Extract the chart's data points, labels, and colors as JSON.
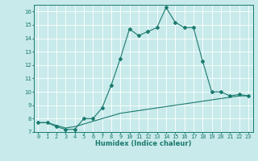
{
  "xlabel": "Humidex (Indice chaleur)",
  "ylabel": "",
  "background_color": "#c8eaea",
  "grid_color": "#ffffff",
  "line_color": "#1a7a6e",
  "xlim": [
    -0.5,
    23.5
  ],
  "ylim": [
    7,
    16.5
  ],
  "yticks": [
    7,
    8,
    9,
    10,
    11,
    12,
    13,
    14,
    15,
    16
  ],
  "xticks": [
    0,
    1,
    2,
    3,
    4,
    5,
    6,
    7,
    8,
    9,
    10,
    11,
    12,
    13,
    14,
    15,
    16,
    17,
    18,
    19,
    20,
    21,
    22,
    23
  ],
  "curve1_x": [
    0,
    1,
    2,
    3,
    4,
    5,
    6,
    7,
    8,
    9,
    10,
    11,
    12,
    13,
    14,
    15,
    16,
    17,
    18,
    19,
    20,
    21,
    22,
    23
  ],
  "curve1_y": [
    7.7,
    7.7,
    7.4,
    7.2,
    7.2,
    8.0,
    8.0,
    8.8,
    10.5,
    12.5,
    14.7,
    14.2,
    14.5,
    14.8,
    16.3,
    15.2,
    14.8,
    14.8,
    12.3,
    10.0,
    10.0,
    9.7,
    9.8,
    9.7
  ],
  "curve2_x": [
    0,
    1,
    2,
    3,
    4,
    5,
    6,
    7,
    8,
    9,
    10,
    11,
    12,
    13,
    14,
    15,
    16,
    17,
    18,
    19,
    20,
    21,
    22,
    23
  ],
  "curve2_y": [
    7.7,
    7.7,
    7.5,
    7.3,
    7.4,
    7.6,
    7.8,
    8.0,
    8.2,
    8.4,
    8.5,
    8.6,
    8.7,
    8.8,
    8.9,
    9.0,
    9.1,
    9.2,
    9.3,
    9.4,
    9.5,
    9.6,
    9.7,
    9.7
  ],
  "tick_fontsize": 5.0,
  "xlabel_fontsize": 6.0,
  "marker_size": 2.0,
  "line_width": 0.8
}
